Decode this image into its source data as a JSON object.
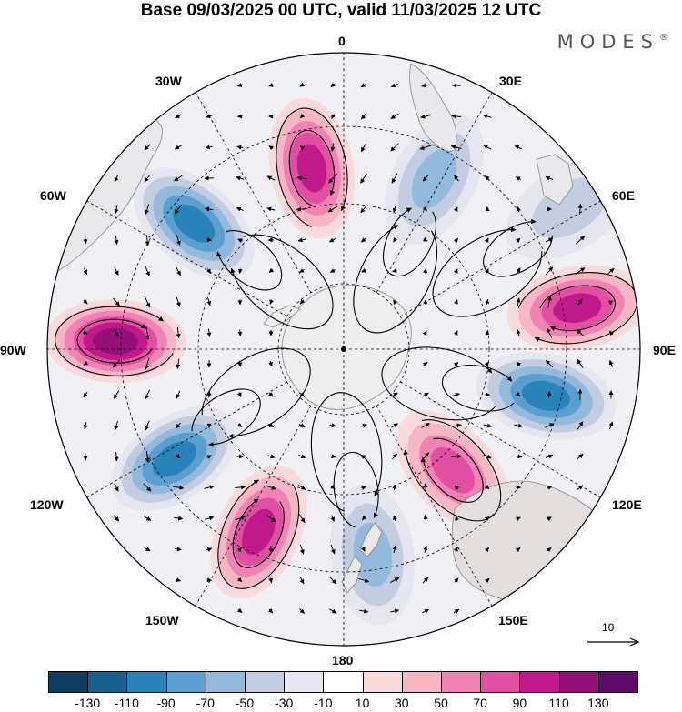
{
  "title": "Base 09/03/2025 00 UTC, valid 11/03/2025 12 UTC",
  "brand": "MODES",
  "brand_mark": "®",
  "longitude_labels": {
    "n": "0",
    "nne": "30E",
    "ene": "60E",
    "e": "90E",
    "ese": "120E",
    "sse": "150E",
    "s": "180",
    "ssw": "150W",
    "wsw": "120W",
    "w": "90W",
    "wnw": "60W",
    "nnw": "30W"
  },
  "vector_reference": "10",
  "colorbar": {
    "ticks": [
      "-130",
      "-110",
      "-90",
      "-70",
      "-50",
      "-30",
      "-10",
      "10",
      "30",
      "50",
      "70",
      "90",
      "110",
      "130"
    ],
    "colors": [
      "#123d5e",
      "#175f8e",
      "#2a82ba",
      "#5a9fcf",
      "#93b9dd",
      "#c3cde2",
      "#e6e6f1",
      "#ffffff",
      "#fadbdd",
      "#f7b6c4",
      "#f083b4",
      "#e04fa2",
      "#c01a8a",
      "#931079",
      "#5d0a6b"
    ]
  },
  "anomaly_centers": [
    {
      "lon": -10,
      "colat": 0.62,
      "value": 95
    },
    {
      "lon": 28,
      "colat": 0.65,
      "value": -60
    },
    {
      "lon": -50,
      "colat": 0.66,
      "value": -100
    },
    {
      "lon": 80,
      "colat": 0.8,
      "value": 105
    },
    {
      "lon": -88,
      "colat": 0.77,
      "value": 120
    },
    {
      "lon": 103,
      "colat": 0.7,
      "value": -105
    },
    {
      "lon": -123,
      "colat": 0.68,
      "value": -95
    },
    {
      "lon": 138,
      "colat": 0.55,
      "value": 70
    },
    {
      "lon": -155,
      "colat": 0.68,
      "value": 90
    },
    {
      "lon": 172,
      "colat": 0.7,
      "value": -55
    },
    {
      "lon": 58,
      "colat": 0.9,
      "value": -30
    }
  ]
}
